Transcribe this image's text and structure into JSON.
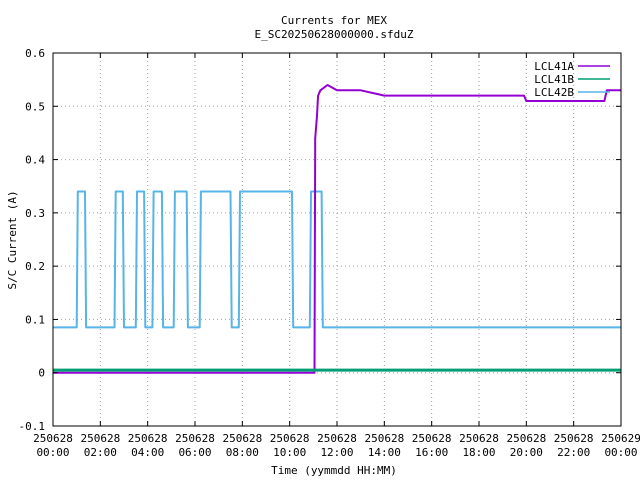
{
  "chart_data": {
    "type": "line",
    "title": "Currents for MEX",
    "subtitle": "E_SC20250628000000.sfduZ",
    "xlabel": "Time (yymmdd HH:MM)",
    "ylabel": "S/C Current (A)",
    "xlim": [
      0,
      24
    ],
    "ylim": [
      -0.1,
      0.6
    ],
    "grid": true,
    "legend_position": "top-right",
    "x_ticks": [
      0,
      2,
      4,
      6,
      8,
      10,
      12,
      14,
      16,
      18,
      20,
      22,
      24
    ],
    "x_tick_labels": [
      [
        "250628",
        "00:00"
      ],
      [
        "250628",
        "02:00"
      ],
      [
        "250628",
        "04:00"
      ],
      [
        "250628",
        "06:00"
      ],
      [
        "250628",
        "08:00"
      ],
      [
        "250628",
        "10:00"
      ],
      [
        "250628",
        "12:00"
      ],
      [
        "250628",
        "14:00"
      ],
      [
        "250628",
        "16:00"
      ],
      [
        "250628",
        "18:00"
      ],
      [
        "250628",
        "20:00"
      ],
      [
        "250628",
        "22:00"
      ],
      [
        "250629",
        "00:00"
      ]
    ],
    "y_ticks": [
      -0.1,
      0,
      0.1,
      0.2,
      0.3,
      0.4,
      0.5,
      0.6
    ],
    "y_tick_labels": [
      "-0.1",
      "0",
      "0.1",
      "0.2",
      "0.3",
      "0.4",
      "0.5",
      "0.6"
    ],
    "series": [
      {
        "name": "LCL41A",
        "color": "#9400d3",
        "x": [
          0,
          11.05,
          11.08,
          11.15,
          11.2,
          11.3,
          11.6,
          12.0,
          13.0,
          14.0,
          15.0,
          16.0,
          17.0,
          18.0,
          19.0,
          19.9,
          20.0,
          21.0,
          22.0,
          23.3,
          23.4,
          24.0
        ],
        "y": [
          0,
          0,
          0.44,
          0.48,
          0.52,
          0.53,
          0.54,
          0.53,
          0.53,
          0.52,
          0.52,
          0.52,
          0.52,
          0.52,
          0.52,
          0.52,
          0.51,
          0.51,
          0.51,
          0.51,
          0.53,
          0.53
        ]
      },
      {
        "name": "LCL41B",
        "color": "#009e73",
        "x": [
          0,
          24
        ],
        "y": [
          0.005,
          0.005
        ]
      },
      {
        "name": "LCL42B",
        "color": "#56b4e9",
        "x": [
          0,
          1.0,
          1.05,
          1.35,
          1.4,
          2.6,
          2.65,
          2.95,
          3.0,
          3.5,
          3.55,
          3.85,
          3.9,
          4.2,
          4.25,
          4.6,
          4.65,
          5.1,
          5.15,
          5.65,
          5.7,
          6.2,
          6.25,
          7.5,
          7.55,
          7.85,
          7.9,
          10.1,
          10.15,
          10.85,
          10.9,
          11.35,
          11.4,
          24.0
        ],
        "y": [
          0.085,
          0.085,
          0.34,
          0.34,
          0.085,
          0.085,
          0.34,
          0.34,
          0.085,
          0.085,
          0.34,
          0.34,
          0.085,
          0.085,
          0.34,
          0.34,
          0.085,
          0.085,
          0.34,
          0.34,
          0.085,
          0.085,
          0.34,
          0.34,
          0.085,
          0.085,
          0.34,
          0.34,
          0.085,
          0.085,
          0.34,
          0.34,
          0.085,
          0.085
        ]
      }
    ]
  }
}
